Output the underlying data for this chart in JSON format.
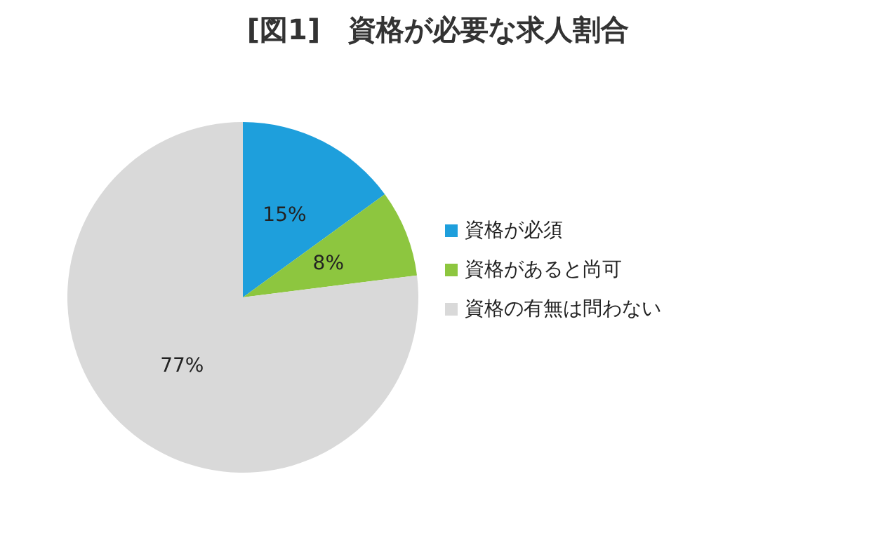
{
  "chart_data": {
    "type": "pie",
    "title": "[図1]　資格が必要な求人割合",
    "categories": [
      "資格が必須",
      "資格があると尚可",
      "資格の有無は問わない"
    ],
    "values": [
      15,
      8,
      77
    ],
    "colors": [
      "#1e9fdc",
      "#8dc63f",
      "#d9d9d9"
    ],
    "value_labels": [
      "15%",
      "8%",
      "77%"
    ],
    "legend": "right"
  }
}
